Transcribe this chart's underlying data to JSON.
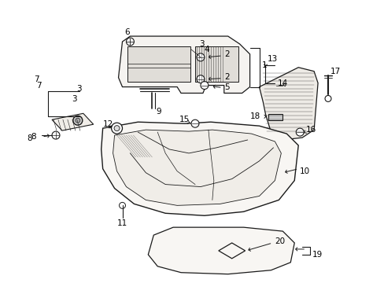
{
  "background_color": "#ffffff",
  "line_color": "#1a1a1a",
  "text_color": "#000000",
  "fs": 7.5,
  "lw": 0.8
}
